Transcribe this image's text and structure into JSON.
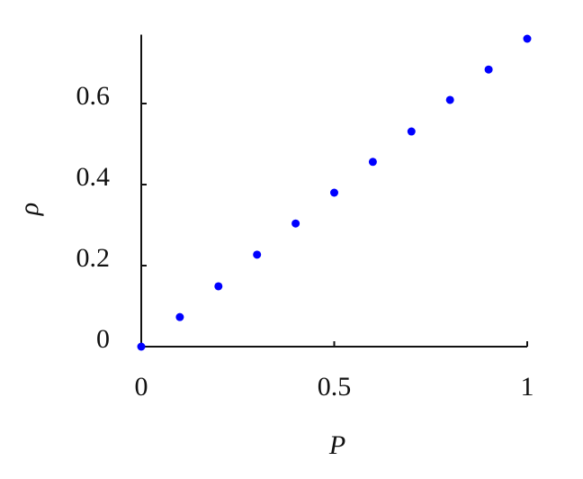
{
  "chart_data": {
    "type": "scatter",
    "x_label": "P",
    "y_label": "ρ",
    "x": [
      0,
      0.1,
      0.2,
      0.3,
      0.4,
      0.5,
      0.6,
      0.7,
      0.8,
      0.9,
      1.0
    ],
    "series": [
      {
        "color": "#0000ff",
        "values": [
          0,
          0.073,
          0.149,
          0.227,
          0.304,
          0.38,
          0.456,
          0.531,
          0.609,
          0.684,
          0.76
        ]
      }
    ],
    "xlim": [
      0,
      1
    ],
    "ylim": [
      0,
      0.77
    ],
    "xticks": [
      0,
      0.5,
      1
    ],
    "yticks": [
      0,
      0.2,
      0.4,
      0.6
    ],
    "grid": false
  }
}
